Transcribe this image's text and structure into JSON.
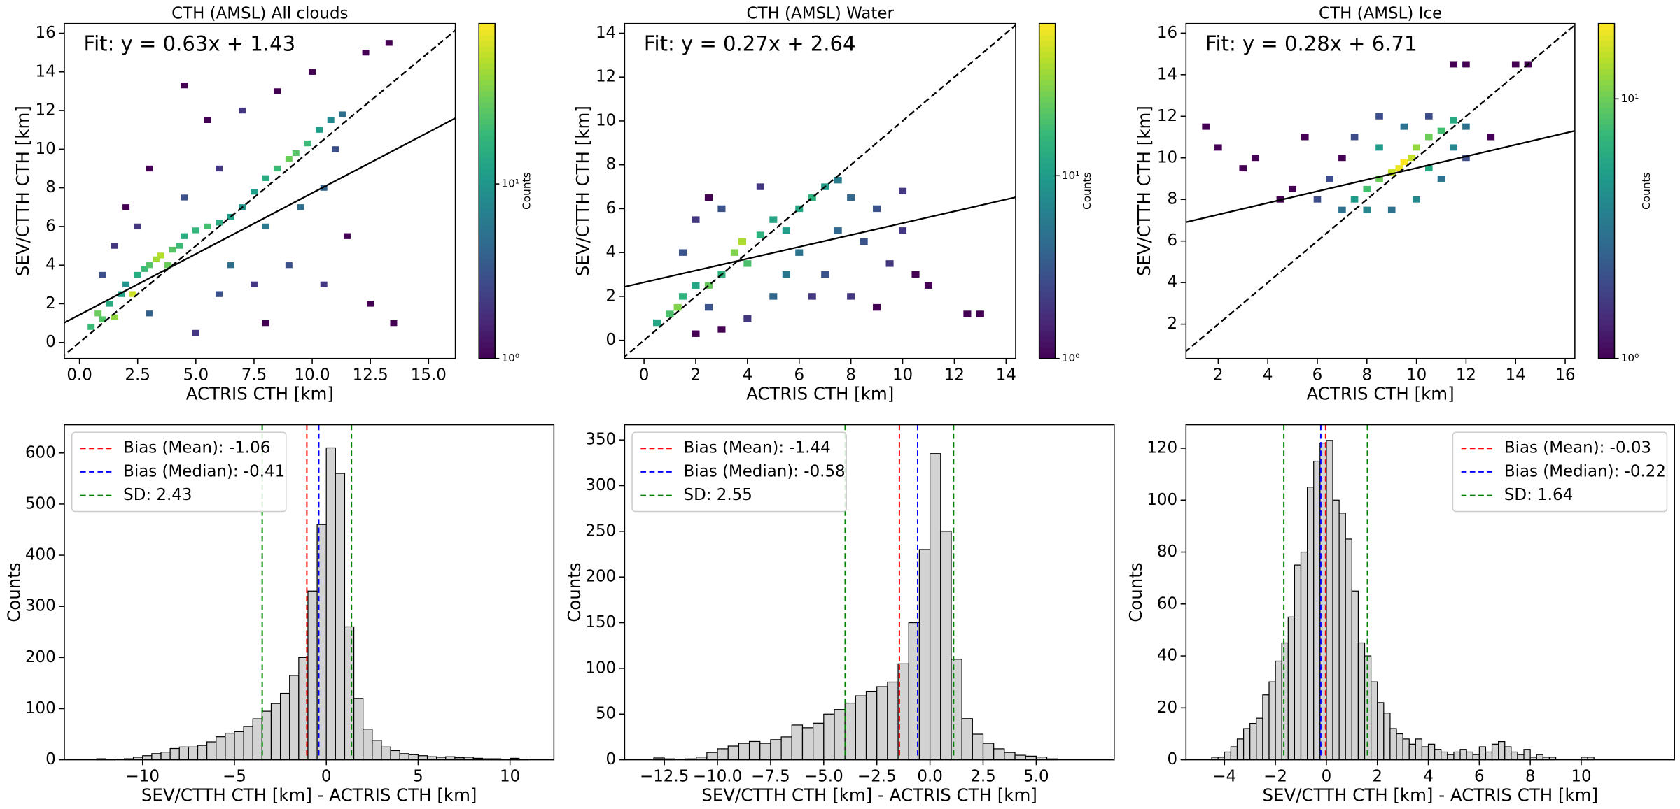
{
  "chart_data": [
    {
      "type": "heatmap",
      "title": "CTH (AMSL) All clouds",
      "xlabel": "ACTRIS CTH [km]",
      "ylabel": "SEV/CTTH CTH [km]",
      "annotation": "Fit: y = 0.63x + 1.43",
      "fit_slope": 0.63,
      "fit_intercept": 1.43,
      "diagonal": true,
      "xlim": [
        -0.65,
        16.15
      ],
      "ylim": [
        -0.83,
        16.5
      ],
      "xticks": [
        {
          "value": 0,
          "label": "0.0"
        },
        2.5,
        {
          "value": 5,
          "label": "5.0"
        },
        7.5,
        {
          "value": 10,
          "label": "10.0"
        },
        12.5,
        {
          "value": 15,
          "label": "15.0"
        }
      ],
      "yticks": [
        0,
        2,
        4,
        6,
        8,
        10,
        12,
        14,
        16
      ],
      "bin_width": 0.3,
      "cells": [
        [
          0.5,
          0.8,
          20
        ],
        [
          0.8,
          1.5,
          30
        ],
        [
          1.0,
          1.2,
          25
        ],
        [
          1.3,
          2.0,
          15
        ],
        [
          1.5,
          1.3,
          40
        ],
        [
          1.8,
          2.5,
          12
        ],
        [
          2.0,
          3.0,
          10
        ],
        [
          2.3,
          2.5,
          60
        ],
        [
          2.5,
          3.5,
          15
        ],
        [
          2.8,
          3.8,
          20
        ],
        [
          3.0,
          4.0,
          25
        ],
        [
          3.3,
          4.3,
          45
        ],
        [
          3.5,
          4.5,
          50
        ],
        [
          3.8,
          4.0,
          30
        ],
        [
          4.0,
          4.8,
          25
        ],
        [
          4.3,
          5.0,
          20
        ],
        [
          4.5,
          5.5,
          15
        ],
        [
          5.0,
          5.8,
          18
        ],
        [
          5.5,
          6.0,
          22
        ],
        [
          6.0,
          6.2,
          15
        ],
        [
          6.5,
          6.5,
          12
        ],
        [
          7.0,
          7.0,
          10
        ],
        [
          7.5,
          7.8,
          12
        ],
        [
          8.0,
          8.5,
          15
        ],
        [
          8.5,
          9.0,
          20
        ],
        [
          9.0,
          9.5,
          30
        ],
        [
          9.3,
          9.8,
          25
        ],
        [
          9.8,
          10.3,
          20
        ],
        [
          10.3,
          11.0,
          12
        ],
        [
          10.8,
          11.5,
          8
        ],
        [
          11.3,
          11.8,
          5
        ],
        [
          1.0,
          3.5,
          3
        ],
        [
          1.5,
          5.0,
          2
        ],
        [
          2.0,
          7.0,
          1
        ],
        [
          3.0,
          9.0,
          1
        ],
        [
          4.5,
          13.3,
          1
        ],
        [
          5.5,
          11.5,
          1
        ],
        [
          7.0,
          12.0,
          2
        ],
        [
          8.5,
          13.0,
          1
        ],
        [
          10.0,
          14.0,
          1
        ],
        [
          12.3,
          15.0,
          1
        ],
        [
          13.3,
          15.5,
          1
        ],
        [
          6.0,
          2.5,
          3
        ],
        [
          7.5,
          3.0,
          2
        ],
        [
          9.0,
          4.0,
          3
        ],
        [
          10.5,
          3.0,
          2
        ],
        [
          11.5,
          5.5,
          1
        ],
        [
          12.5,
          2.0,
          1
        ],
        [
          13.5,
          1.0,
          1
        ],
        [
          8.0,
          1.0,
          1
        ],
        [
          5.0,
          0.5,
          2
        ],
        [
          3.0,
          1.5,
          4
        ],
        [
          6.5,
          4.0,
          5
        ],
        [
          8.0,
          6.0,
          6
        ],
        [
          9.5,
          7.0,
          5
        ],
        [
          10.5,
          8.0,
          4
        ],
        [
          11.0,
          10.0,
          3
        ],
        [
          4.5,
          7.5,
          3
        ],
        [
          6.0,
          9.0,
          2
        ],
        [
          2.5,
          6.0,
          2
        ]
      ],
      "colorbar": {
        "label": "Counts",
        "scale": "log",
        "colormap": "viridis",
        "lim": [
          1,
          83
        ],
        "ticks": [
          {
            "value": 1,
            "label": "10⁰"
          },
          {
            "value": 10,
            "label": "10¹"
          }
        ]
      }
    },
    {
      "type": "heatmap",
      "title": "CTH (AMSL) Water",
      "xlabel": "ACTRIS CTH [km]",
      "ylabel": "SEV/CTTH CTH [km]",
      "annotation": "Fit: y = 0.27x + 2.64",
      "fit_slope": 0.27,
      "fit_intercept": 2.64,
      "diagonal": true,
      "xlim": [
        -0.75,
        14.37
      ],
      "ylim": [
        -0.83,
        14.44
      ],
      "xticks": [
        0,
        2,
        4,
        6,
        8,
        10,
        12,
        14
      ],
      "yticks": [
        0,
        2,
        4,
        6,
        8,
        10,
        12,
        14
      ],
      "bin_width": 0.3,
      "cells": [
        [
          0.5,
          0.8,
          12
        ],
        [
          1.0,
          1.2,
          20
        ],
        [
          1.3,
          1.5,
          30
        ],
        [
          1.5,
          2.0,
          15
        ],
        [
          2.0,
          2.5,
          12
        ],
        [
          2.5,
          2.5,
          25
        ],
        [
          3.0,
          3.0,
          15
        ],
        [
          3.5,
          4.0,
          30
        ],
        [
          3.8,
          4.5,
          40
        ],
        [
          4.0,
          3.5,
          20
        ],
        [
          4.5,
          4.8,
          15
        ],
        [
          5.0,
          5.5,
          12
        ],
        [
          5.5,
          5.0,
          10
        ],
        [
          6.0,
          6.0,
          12
        ],
        [
          6.5,
          6.5,
          15
        ],
        [
          7.0,
          7.0,
          10
        ],
        [
          7.5,
          7.3,
          6
        ],
        [
          8.0,
          6.5,
          4
        ],
        [
          9.0,
          6.0,
          3
        ],
        [
          10.0,
          5.0,
          2
        ],
        [
          10.5,
          3.0,
          1
        ],
        [
          11.0,
          2.5,
          1
        ],
        [
          12.5,
          1.2,
          1
        ],
        [
          13.0,
          1.2,
          1
        ],
        [
          2.0,
          5.5,
          2
        ],
        [
          2.5,
          6.5,
          1
        ],
        [
          1.5,
          4.0,
          3
        ],
        [
          3.0,
          6.0,
          3
        ],
        [
          4.5,
          7.0,
          2
        ],
        [
          6.0,
          4.0,
          5
        ],
        [
          7.0,
          3.0,
          3
        ],
        [
          8.0,
          2.0,
          2
        ],
        [
          9.0,
          1.5,
          1
        ],
        [
          5.0,
          2.0,
          4
        ],
        [
          4.0,
          1.0,
          2
        ],
        [
          3.0,
          0.5,
          1
        ],
        [
          2.0,
          0.3,
          1
        ],
        [
          8.5,
          4.5,
          3
        ],
        [
          9.5,
          3.5,
          2
        ],
        [
          10.0,
          6.8,
          2
        ],
        [
          7.5,
          5.0,
          4
        ],
        [
          5.5,
          3.0,
          5
        ],
        [
          2.5,
          1.5,
          3
        ],
        [
          6.5,
          2.0,
          2
        ]
      ],
      "colorbar": {
        "label": "Counts",
        "scale": "log",
        "colormap": "viridis",
        "lim": [
          1,
          68
        ],
        "ticks": [
          {
            "value": 1,
            "label": "10⁰"
          },
          {
            "value": 10,
            "label": "10¹"
          }
        ]
      }
    },
    {
      "type": "heatmap",
      "title": "CTH (AMSL) Ice",
      "xlabel": "ACTRIS CTH [km]",
      "ylabel": "SEV/CTTH CTH [km]",
      "annotation": "Fit: y = 0.28x + 6.71",
      "fit_slope": 0.28,
      "fit_intercept": 6.71,
      "diagonal": true,
      "xlim": [
        0.7,
        16.39
      ],
      "ylim": [
        0.35,
        16.46
      ],
      "xticks": [
        2,
        4,
        6,
        8,
        10,
        12,
        14,
        16
      ],
      "yticks": [
        2,
        4,
        6,
        8,
        10,
        12,
        14,
        16
      ],
      "bin_width": 0.3,
      "cells": [
        [
          7.0,
          7.5,
          3
        ],
        [
          7.5,
          8.0,
          5
        ],
        [
          8.0,
          8.5,
          8
        ],
        [
          8.5,
          9.0,
          10
        ],
        [
          9.0,
          9.3,
          15
        ],
        [
          9.3,
          9.5,
          18
        ],
        [
          9.5,
          9.8,
          20
        ],
        [
          9.8,
          10.0,
          15
        ],
        [
          10.0,
          10.5,
          12
        ],
        [
          10.5,
          11.0,
          10
        ],
        [
          11.0,
          11.3,
          8
        ],
        [
          11.5,
          11.8,
          6
        ],
        [
          12.0,
          11.5,
          3
        ],
        [
          8.0,
          7.5,
          4
        ],
        [
          9.0,
          7.5,
          3
        ],
        [
          10.0,
          8.0,
          4
        ],
        [
          11.0,
          9.0,
          3
        ],
        [
          12.0,
          10.0,
          2
        ],
        [
          6.5,
          9.0,
          2
        ],
        [
          7.0,
          10.0,
          1
        ],
        [
          6.0,
          8.0,
          2
        ],
        [
          5.0,
          8.5,
          1
        ],
        [
          4.5,
          8.0,
          1
        ],
        [
          3.5,
          10.0,
          1
        ],
        [
          2.0,
          10.5,
          1
        ],
        [
          1.5,
          11.5,
          1
        ],
        [
          3.0,
          9.5,
          1
        ],
        [
          5.5,
          11.0,
          1
        ],
        [
          8.5,
          12.0,
          2
        ],
        [
          11.5,
          14.5,
          1
        ],
        [
          12.0,
          14.5,
          1
        ],
        [
          14.0,
          14.5,
          1
        ],
        [
          14.5,
          14.5,
          1
        ],
        [
          13.0,
          11.0,
          1
        ],
        [
          9.5,
          11.5,
          3
        ],
        [
          10.5,
          12.0,
          2
        ],
        [
          7.5,
          11.0,
          2
        ],
        [
          8.5,
          10.5,
          5
        ],
        [
          10.5,
          9.5,
          6
        ],
        [
          11.5,
          10.5,
          4
        ]
      ],
      "colorbar": {
        "label": "Counts",
        "scale": "log",
        "colormap": "viridis",
        "lim": [
          1,
          19.5
        ],
        "ticks": [
          {
            "value": 1,
            "label": "10⁰"
          },
          {
            "value": 10,
            "label": "10¹"
          }
        ]
      }
    },
    {
      "type": "histogram",
      "xlabel": "SEV/CTTH CTH [km] - ACTRIS CTH [km]",
      "ylabel": "Counts",
      "color": "#d3d3d3",
      "edgecolor": "#000000",
      "legend": "upper left",
      "xlim": [
        -14.26,
        12.39
      ],
      "ylim": [
        0,
        655
      ],
      "xticks": [
        {
          "value": -10,
          "label": "−10"
        },
        {
          "value": -5,
          "label": "−5"
        },
        0,
        5,
        10
      ],
      "yticks": [
        0,
        100,
        200,
        300,
        400,
        500,
        600
      ],
      "bins": [
        -12.5,
        -12,
        -11.5,
        -11,
        -10.5,
        -10,
        -9.5,
        -9,
        -8.5,
        -8,
        -7.5,
        -7,
        -6.5,
        -6,
        -5.5,
        -5,
        -4.5,
        -4,
        -3.5,
        -3,
        -2.5,
        -2,
        -1.5,
        -1,
        -0.5,
        0,
        0.5,
        1,
        1.5,
        2,
        2.5,
        3,
        3.5,
        4,
        4.5,
        5,
        5.5,
        6,
        6.5,
        7,
        7.5,
        8,
        8.5,
        9,
        9.5,
        10,
        10.5,
        11
      ],
      "counts": [
        2,
        1,
        0,
        2,
        5,
        8,
        12,
        15,
        22,
        25,
        25,
        28,
        35,
        45,
        52,
        55,
        65,
        80,
        95,
        110,
        130,
        165,
        200,
        330,
        460,
        610,
        560,
        260,
        120,
        60,
        38,
        25,
        18,
        12,
        10,
        8,
        6,
        5,
        6,
        4,
        5,
        3,
        2,
        2,
        1,
        3,
        1
      ],
      "lines": [
        {
          "name": "Bias (Mean): -1.06",
          "kind": "mean",
          "value": -1.06,
          "color": "#ff0000"
        },
        {
          "name": "Bias (Median): -0.41",
          "kind": "median",
          "value": -0.41,
          "color": "#0000ff"
        },
        {
          "name": "SD: 2.43",
          "kind": "sd",
          "value": 2.43,
          "color": "#008000"
        }
      ]
    },
    {
      "type": "histogram",
      "xlabel": "SEV/CTTH CTH [km] - ACTRIS CTH [km]",
      "ylabel": "Counts",
      "color": "#d3d3d3",
      "edgecolor": "#000000",
      "legend": "upper left",
      "xlim": [
        -14.37,
        8.67
      ],
      "ylim": [
        0,
        366.5
      ],
      "xticks": [
        {
          "value": -12.5,
          "label": "−12.5"
        },
        {
          "value": -10,
          "label": "−10.0"
        },
        {
          "value": -7.5,
          "label": "−7.5"
        },
        {
          "value": -5,
          "label": "−5.0"
        },
        {
          "value": -2.5,
          "label": "−2.5"
        },
        {
          "value": 0,
          "label": "0.0"
        },
        2.5,
        {
          "value": 5,
          "label": "5.0"
        }
      ],
      "yticks": [
        0,
        50,
        100,
        150,
        200,
        250,
        300,
        350
      ],
      "bins": [
        -13,
        -12.5,
        -12,
        -11.5,
        -11,
        -10.5,
        -10,
        -9.5,
        -9,
        -8.5,
        -8,
        -7.5,
        -7,
        -6.5,
        -6,
        -5.5,
        -5,
        -4.5,
        -4,
        -3.5,
        -3,
        -2.5,
        -2,
        -1.5,
        -1,
        -0.5,
        0,
        0.5,
        1,
        1.5,
        2,
        2.5,
        3,
        3.5,
        4,
        4.5,
        5,
        5.5,
        6
      ],
      "counts": [
        2,
        1,
        0,
        1,
        3,
        8,
        12,
        15,
        18,
        20,
        18,
        22,
        25,
        38,
        35,
        40,
        50,
        55,
        62,
        70,
        75,
        80,
        85,
        105,
        150,
        230,
        335,
        250,
        110,
        45,
        28,
        18,
        12,
        8,
        5,
        4,
        3,
        1
      ],
      "lines": [
        {
          "name": "Bias (Mean): -1.44",
          "kind": "mean",
          "value": -1.44,
          "color": "#ff0000"
        },
        {
          "name": "Bias (Median): -0.58",
          "kind": "median",
          "value": -0.58,
          "color": "#0000ff"
        },
        {
          "name": "SD: 2.55",
          "kind": "sd",
          "value": 2.55,
          "color": "#008000"
        }
      ]
    },
    {
      "type": "histogram",
      "xlabel": "SEV/CTTH CTH [km] - ACTRIS CTH [km]",
      "ylabel": "Counts",
      "color": "#d3d3d3",
      "edgecolor": "#000000",
      "legend": "upper right",
      "xlim": [
        -5.51,
        13.66
      ],
      "ylim": [
        0,
        129
      ],
      "xticks": [
        {
          "value": -4,
          "label": "−4"
        },
        {
          "value": -2,
          "label": "−2"
        },
        0,
        2,
        4,
        6,
        8,
        10
      ],
      "yticks": [
        0,
        20,
        40,
        60,
        80,
        100,
        120
      ],
      "bins": [
        -4.5,
        -4.25,
        -4,
        -3.75,
        -3.5,
        -3.25,
        -3,
        -2.75,
        -2.5,
        -2.25,
        -2,
        -1.75,
        -1.5,
        -1.25,
        -1,
        -0.75,
        -0.5,
        -0.25,
        0,
        0.25,
        0.5,
        0.75,
        1,
        1.25,
        1.5,
        1.75,
        2,
        2.25,
        2.5,
        2.75,
        3,
        3.25,
        3.5,
        3.75,
        4,
        4.25,
        4.5,
        4.75,
        5,
        5.25,
        5.5,
        5.75,
        6,
        6.25,
        6.5,
        6.75,
        7,
        7.25,
        7.5,
        7.75,
        8,
        8.25,
        8.5,
        8.75,
        9,
        9.25,
        9.5,
        9.75,
        10,
        10.25,
        10.5
      ],
      "counts": [
        1,
        1,
        3,
        5,
        8,
        12,
        14,
        16,
        25,
        30,
        38,
        45,
        55,
        75,
        80,
        105,
        115,
        122,
        123,
        100,
        95,
        85,
        65,
        45,
        40,
        30,
        22,
        18,
        12,
        10,
        8,
        6,
        8,
        5,
        6,
        4,
        3,
        2,
        3,
        4,
        3,
        2,
        5,
        3,
        6,
        7,
        5,
        3,
        2,
        4,
        1,
        2,
        1,
        1,
        0,
        0,
        0,
        0,
        1,
        1
      ],
      "lines": [
        {
          "name": "Bias (Mean): -0.03",
          "kind": "mean",
          "value": -0.03,
          "color": "#ff0000"
        },
        {
          "name": "Bias (Median): -0.22",
          "kind": "median",
          "value": -0.22,
          "color": "#0000ff"
        },
        {
          "name": "SD: 1.64",
          "kind": "sd",
          "value": 1.64,
          "color": "#008000"
        }
      ]
    }
  ]
}
